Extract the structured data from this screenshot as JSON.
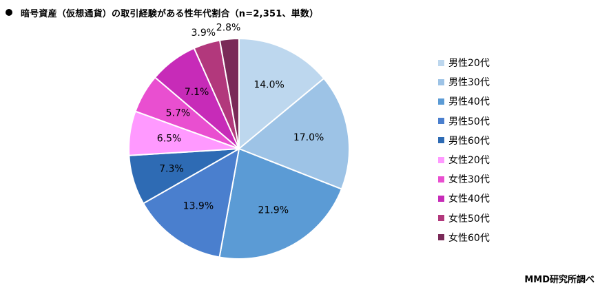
{
  "title": "暗号資産（仮想通貨）の取引経験がある性年代割合（n=2,351、単数）",
  "source": "MMD研究所調べ",
  "chart_data": {
    "type": "pie",
    "title": "暗号資産（仮想通貨）の取引経験がある性年代割合（n=2,351、単数）",
    "start": "12 o'clock",
    "direction": "clockwise",
    "legend_position": "right",
    "slices": [
      {
        "label": "男性20代",
        "value": 14.0,
        "display": "14.0%",
        "color": "#bdd7ee"
      },
      {
        "label": "男性30代",
        "value": 17.0,
        "display": "17.0%",
        "color": "#9dc3e6"
      },
      {
        "label": "男性40代",
        "value": 21.9,
        "display": "21.9%",
        "color": "#5b9bd5"
      },
      {
        "label": "男性50代",
        "value": 13.9,
        "display": "13.9%",
        "color": "#4a7fce"
      },
      {
        "label": "男性60代",
        "value": 7.3,
        "display": "7.3%",
        "color": "#2e6bb4"
      },
      {
        "label": "女性20代",
        "value": 6.5,
        "display": "6.5%",
        "color": "#ff99ff"
      },
      {
        "label": "女性30代",
        "value": 5.7,
        "display": "5.7%",
        "color": "#e94fd0"
      },
      {
        "label": "女性40代",
        "value": 7.1,
        "display": "7.1%",
        "color": "#c72bb8"
      },
      {
        "label": "女性50代",
        "value": 3.9,
        "display": "3.9%",
        "color": "#b2387c"
      },
      {
        "label": "女性60代",
        "value": 2.8,
        "display": "2.8%",
        "color": "#7a2a58"
      }
    ]
  }
}
